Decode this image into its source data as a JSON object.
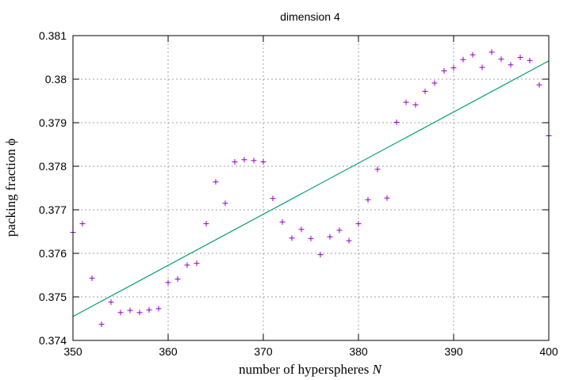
{
  "chart_data": {
    "type": "scatter",
    "title": "dimension 4",
    "xlabel": "number of hyperspheres",
    "xlabel_var": "N",
    "ylabel": "packing fraction",
    "ylabel_var": "ϕ",
    "xlim": [
      350,
      400
    ],
    "ylim": [
      0.374,
      0.381
    ],
    "xticks": [
      350,
      360,
      370,
      380,
      390,
      400
    ],
    "xtick_labels": [
      "350",
      "360",
      "370",
      "380",
      "390",
      "400"
    ],
    "yticks": [
      0.374,
      0.375,
      0.376,
      0.377,
      0.378,
      0.379,
      0.38,
      0.381
    ],
    "ytick_labels": [
      "0.374",
      "0.375",
      "0.376",
      "0.377",
      "0.378",
      "0.379",
      "0.38",
      "0.381"
    ],
    "grid": true,
    "series": [
      {
        "style": "points",
        "marker": "+",
        "color": "#9400d3",
        "x": [
          350,
          351,
          352,
          353,
          354,
          355,
          356,
          357,
          358,
          359,
          360,
          361,
          362,
          363,
          364,
          365,
          366,
          367,
          368,
          369,
          370,
          371,
          372,
          373,
          374,
          375,
          376,
          377,
          378,
          379,
          380,
          381,
          382,
          383,
          384,
          385,
          386,
          387,
          388,
          389,
          390,
          391,
          392,
          393,
          394,
          395,
          396,
          397,
          398,
          399,
          400
        ],
        "y": [
          0.37648,
          0.37668,
          0.37543,
          0.37437,
          0.37488,
          0.37464,
          0.37469,
          0.37464,
          0.3747,
          0.37473,
          0.37533,
          0.37541,
          0.37573,
          0.37577,
          0.37668,
          0.37764,
          0.37715,
          0.3781,
          0.37815,
          0.37813,
          0.3781,
          0.37726,
          0.37672,
          0.37635,
          0.37655,
          0.37634,
          0.37597,
          0.37638,
          0.37653,
          0.37629,
          0.37668,
          0.37723,
          0.37793,
          0.37727,
          0.37901,
          0.37947,
          0.37941,
          0.37972,
          0.37991,
          0.38019,
          0.38026,
          0.38045,
          0.38056,
          0.38027,
          0.38062,
          0.38046,
          0.38033,
          0.3805,
          0.38043,
          0.37987,
          0.3787
        ]
      },
      {
        "style": "line",
        "color": "#009e73",
        "x": [
          350,
          400
        ],
        "y": [
          0.37455,
          0.38042
        ]
      }
    ]
  }
}
